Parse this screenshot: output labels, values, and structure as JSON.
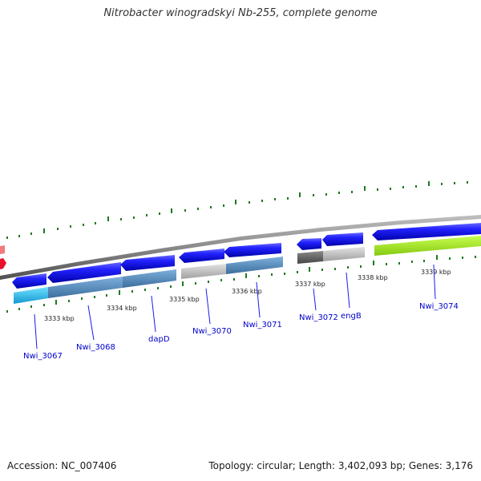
{
  "title": "Nitrobacter winogradskyi Nb-255, complete genome",
  "accession": "Accession: NC_007406",
  "summary": "Topology: circular; Length: 3,402,093 bp; Genes: 3,176",
  "ticks": [
    "3333 kbp",
    "3334 kbp",
    "3335 kbp",
    "3336 kbp",
    "3337 kbp",
    "3338 kbp",
    "3339 kbp"
  ],
  "genes": [
    "Nwi_3067",
    "Nwi_3068",
    "dapD",
    "Nwi_3070",
    "Nwi_3071",
    "Nwi_3072",
    "engB",
    "Nwi_3074"
  ],
  "colors": {
    "cds": "#1a1aee",
    "backbone": "#888888",
    "tick": "#1e7a1e",
    "label": "#0000cc",
    "cog_cyan": "#22c4f0",
    "cog_steel": "#4f87bd",
    "cog_grey": "#c4c4c4",
    "cog_dark": "#5e5e5e",
    "cog_lime": "#a8ee20",
    "red": "#e8102a",
    "pink": "#f07a82"
  }
}
